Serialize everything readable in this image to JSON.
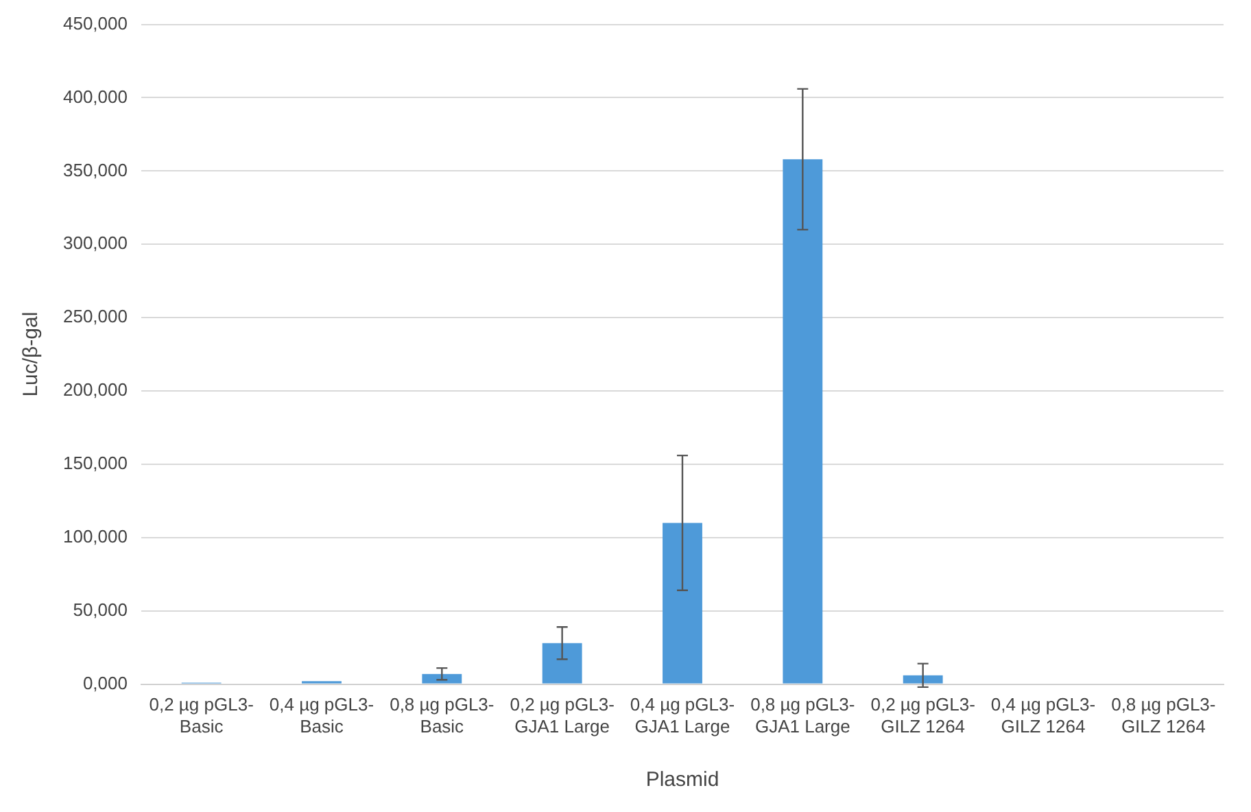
{
  "chart_data": {
    "type": "bar",
    "xlabel": "Plasmid",
    "ylabel": "Luc/β-gal",
    "categories": [
      "0,2 µg pGL3-\nBasic",
      "0,4 µg pGL3-\nBasic",
      "0,8 µg pGL3-\nBasic",
      "0,2 µg pGL3-\nGJA1 Large",
      "0,4 µg pGL3-\nGJA1 Large",
      "0,8 µg pGL3-\nGJA1 Large",
      "0,2 µg pGL3-\nGILZ 1264",
      "0,4 µg pGL3-\nGILZ 1264",
      "0,8 µg pGL3-\nGILZ 1264"
    ],
    "values": [
      1,
      2,
      7,
      28,
      110,
      358,
      6,
      0,
      0
    ],
    "errors": [
      null,
      null,
      4,
      11,
      46,
      48,
      8,
      null,
      null
    ],
    "color": "#4e9ad9",
    "ylim": [
      0,
      450
    ],
    "yticks": [
      {
        "value": 0,
        "label": "0,000"
      },
      {
        "value": 50,
        "label": "50,000"
      },
      {
        "value": 100,
        "label": "100,000"
      },
      {
        "value": 150,
        "label": "150,000"
      },
      {
        "value": 200,
        "label": "200,000"
      },
      {
        "value": 250,
        "label": "250,000"
      },
      {
        "value": 300,
        "label": "300,000"
      },
      {
        "value": 350,
        "label": "350,000"
      },
      {
        "value": 400,
        "label": "400,000"
      },
      {
        "value": 450,
        "label": "450,000"
      }
    ],
    "grid": "y",
    "legend": false
  }
}
